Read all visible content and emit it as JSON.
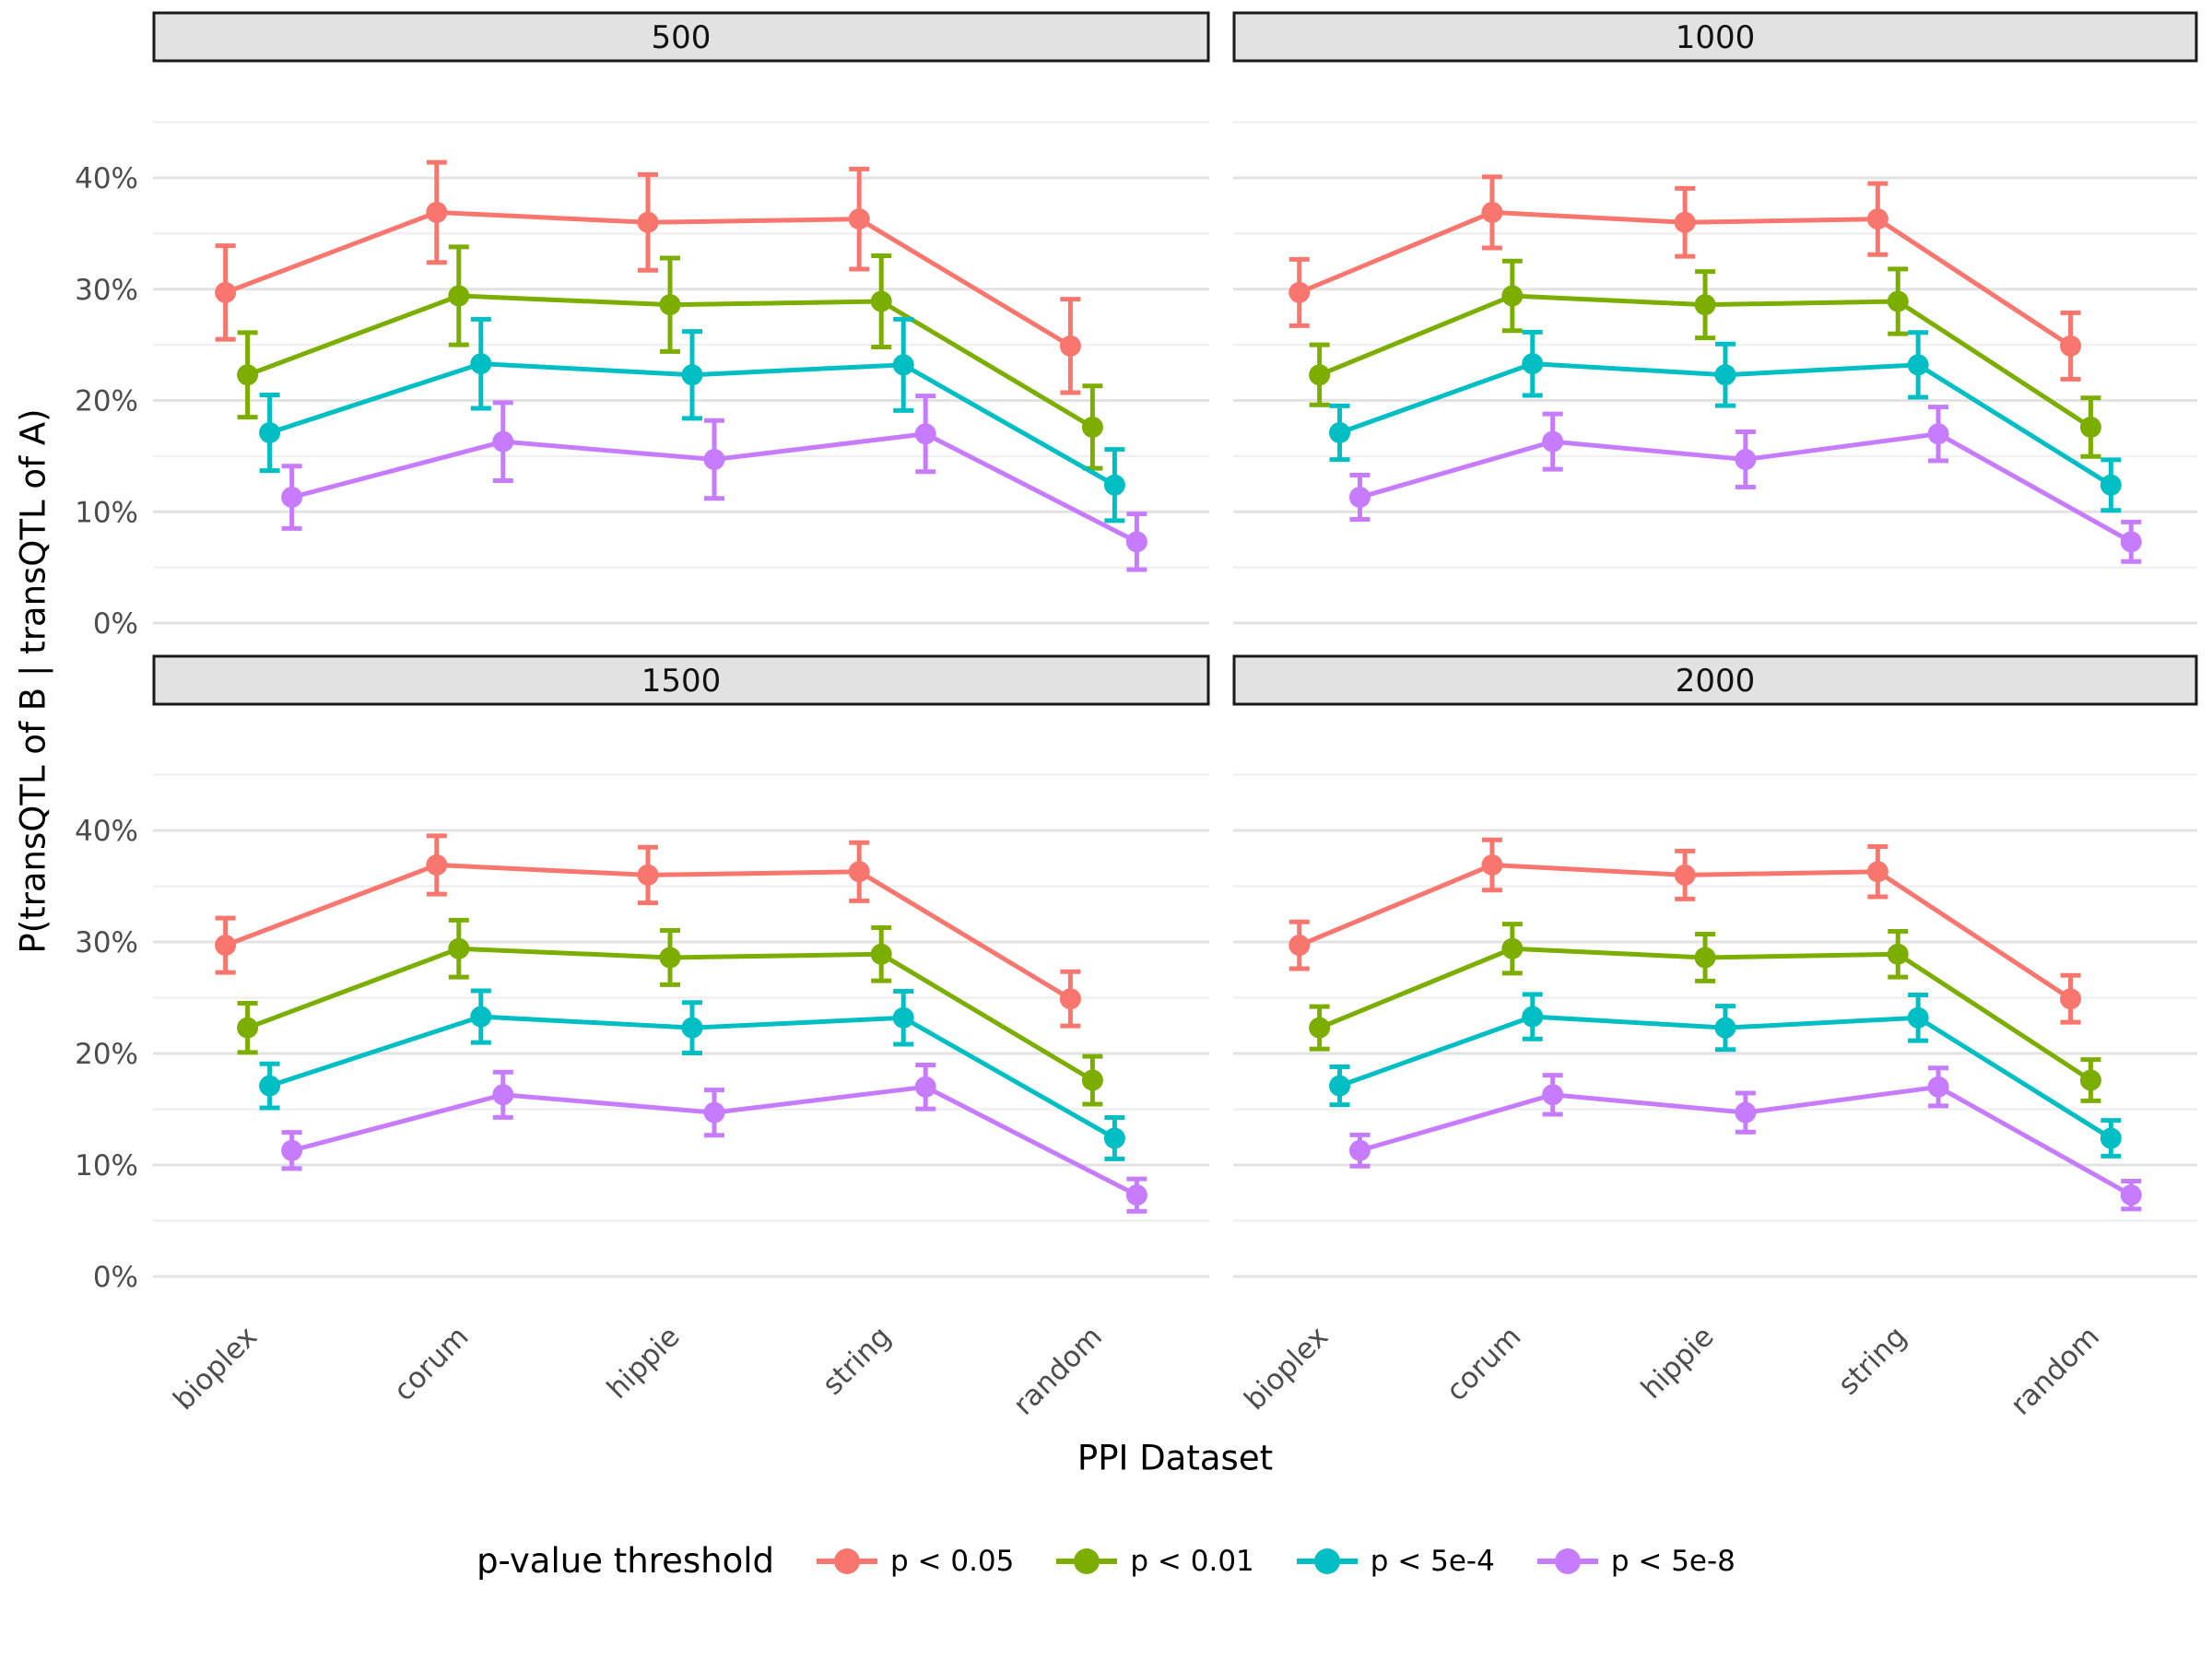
{
  "chart_data": {
    "type": "line",
    "subtype": "pointrange-with-errorbars",
    "facets": [
      {
        "label": "500",
        "error_scale": 1.0
      },
      {
        "label": "1000",
        "error_scale": 0.71
      },
      {
        "label": "1500",
        "error_scale": 0.58
      },
      {
        "label": "2000",
        "error_scale": 0.5
      }
    ],
    "categories": [
      "bioplex",
      "corum",
      "hippie",
      "string",
      "random"
    ],
    "series": [
      {
        "name": "p < 0.05",
        "color": "#F8766D",
        "values": [
          29.7,
          36.9,
          36.0,
          36.3,
          24.9
        ],
        "ci_halfwidth_at_500": [
          4.2,
          4.5,
          4.3,
          4.5,
          4.2
        ]
      },
      {
        "name": "p < 0.01",
        "color": "#7CAE00",
        "values": [
          22.3,
          29.4,
          28.6,
          28.9,
          17.6
        ],
        "ci_halfwidth_at_500": [
          3.8,
          4.4,
          4.2,
          4.1,
          3.7
        ]
      },
      {
        "name": "p < 5e-4",
        "color": "#00BFC4",
        "values": [
          17.1,
          23.3,
          22.3,
          23.2,
          12.4
        ],
        "ci_halfwidth_at_500": [
          3.4,
          4.0,
          3.9,
          4.1,
          3.2
        ]
      },
      {
        "name": "p < 5e-8",
        "color": "#C77CFF",
        "values": [
          11.3,
          16.3,
          14.7,
          17.0,
          7.3
        ],
        "ci_halfwidth_at_500": [
          2.8,
          3.5,
          3.5,
          3.4,
          2.5
        ]
      }
    ],
    "xlabel": "PPI Dataset",
    "ylabel": "P(transQTL of B | transQTL of A)",
    "y_ticks": [
      0,
      10,
      20,
      30,
      40
    ],
    "y_tick_labels": [
      "0%",
      "10%",
      "20%",
      "30%",
      "40%"
    ],
    "ylim": [
      -2,
      50
    ],
    "grid": "major+minor, horizontal only",
    "legend_position": "bottom",
    "legend_title": "p-value threshold"
  },
  "style": {
    "strip_bg": "#E2E2E2",
    "strip_border": "#1a1a1a",
    "major_grid": "#E3E3E3",
    "minor_grid": "#F0F0F0",
    "tick_text": "#4d4d4d",
    "panel_bg": "#ffffff"
  }
}
